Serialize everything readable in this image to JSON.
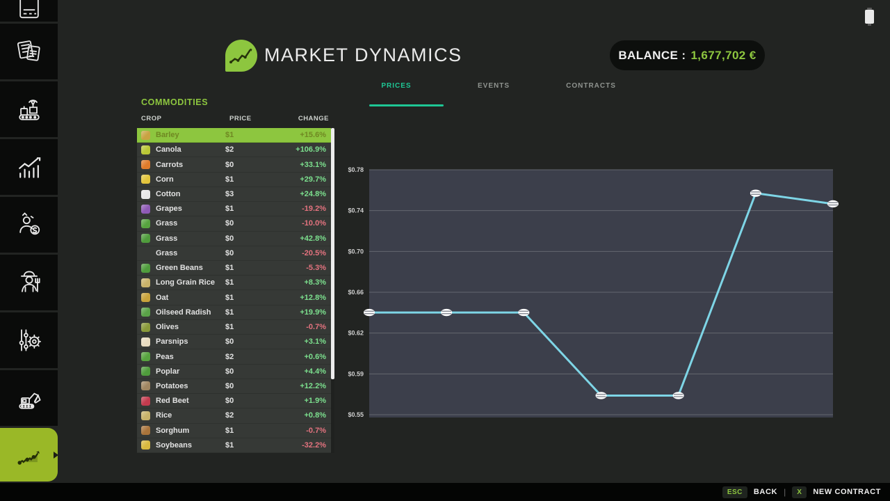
{
  "header": {
    "title": "MARKET DYNAMICS",
    "balance_label": "BALANCE :",
    "balance_value": "1,677,702 €"
  },
  "tabs": [
    {
      "label": "PRICES",
      "active": true
    },
    {
      "label": "EVENTS",
      "active": false
    },
    {
      "label": "CONTRACTS",
      "active": false
    }
  ],
  "commodities": {
    "section_title": "COMMODITIES",
    "columns": [
      "CROP",
      "PRICE",
      "CHANGE"
    ],
    "rows": [
      {
        "crop": "Barley",
        "price": "$1",
        "change": "+15.6%",
        "dir": "up",
        "selected": true,
        "icon": "barley-icon",
        "icon_color": "#c8a342"
      },
      {
        "crop": "Canola",
        "price": "$2",
        "change": "+106.9%",
        "dir": "up",
        "selected": false,
        "icon": "canola-icon",
        "icon_color": "#b9c736"
      },
      {
        "crop": "Carrots",
        "price": "$0",
        "change": "+33.1%",
        "dir": "up",
        "selected": false,
        "icon": "carrot-icon",
        "icon_color": "#e07b2a"
      },
      {
        "crop": "Corn",
        "price": "$1",
        "change": "+29.7%",
        "dir": "up",
        "selected": false,
        "icon": "corn-icon",
        "icon_color": "#e3c53c"
      },
      {
        "crop": "Cotton",
        "price": "$3",
        "change": "+24.8%",
        "dir": "up",
        "selected": false,
        "icon": "cotton-icon",
        "icon_color": "#e8e8e8"
      },
      {
        "crop": "Grapes",
        "price": "$1",
        "change": "-19.2%",
        "dir": "down",
        "selected": false,
        "icon": "grapes-icon",
        "icon_color": "#8e5ab5"
      },
      {
        "crop": "Grass",
        "price": "$0",
        "change": "-10.0%",
        "dir": "down",
        "selected": false,
        "icon": "grass-icon",
        "icon_color": "#57a33f"
      },
      {
        "crop": "Grass",
        "price": "$0",
        "change": "+42.8%",
        "dir": "up",
        "selected": false,
        "icon": "grass-icon",
        "icon_color": "#4f9c3c"
      },
      {
        "crop": "Grass",
        "price": "$0",
        "change": "-20.5%",
        "dir": "down",
        "selected": false,
        "icon": "none",
        "icon_color": "transparent"
      },
      {
        "crop": "Green Beans",
        "price": "$1",
        "change": "-5.3%",
        "dir": "down",
        "selected": false,
        "icon": "green-beans-icon",
        "icon_color": "#4f9c3c"
      },
      {
        "crop": "Long Grain Rice",
        "price": "$1",
        "change": "+8.3%",
        "dir": "up",
        "selected": false,
        "icon": "rice-icon",
        "icon_color": "#c9b36a"
      },
      {
        "crop": "Oat",
        "price": "$1",
        "change": "+12.8%",
        "dir": "up",
        "selected": false,
        "icon": "oat-icon",
        "icon_color": "#c9a33b"
      },
      {
        "crop": "Oilseed Radish",
        "price": "$1",
        "change": "+19.9%",
        "dir": "up",
        "selected": false,
        "icon": "oilseed-radish-icon",
        "icon_color": "#5aa348"
      },
      {
        "crop": "Olives",
        "price": "$1",
        "change": "-0.7%",
        "dir": "down",
        "selected": false,
        "icon": "olives-icon",
        "icon_color": "#8a9a3a"
      },
      {
        "crop": "Parsnips",
        "price": "$0",
        "change": "+3.1%",
        "dir": "up",
        "selected": false,
        "icon": "parsnip-icon",
        "icon_color": "#e8dcc0"
      },
      {
        "crop": "Peas",
        "price": "$2",
        "change": "+0.6%",
        "dir": "up",
        "selected": false,
        "icon": "peas-icon",
        "icon_color": "#57a33f"
      },
      {
        "crop": "Poplar",
        "price": "$0",
        "change": "+4.4%",
        "dir": "up",
        "selected": false,
        "icon": "poplar-icon",
        "icon_color": "#4f9c3c"
      },
      {
        "crop": "Potatoes",
        "price": "$0",
        "change": "+12.2%",
        "dir": "up",
        "selected": false,
        "icon": "potato-icon",
        "icon_color": "#a08662"
      },
      {
        "crop": "Red Beet",
        "price": "$0",
        "change": "+1.9%",
        "dir": "up",
        "selected": false,
        "icon": "red-beet-icon",
        "icon_color": "#c43b4e"
      },
      {
        "crop": "Rice",
        "price": "$2",
        "change": "+0.8%",
        "dir": "up",
        "selected": false,
        "icon": "rice-icon",
        "icon_color": "#c9b36a"
      },
      {
        "crop": "Sorghum",
        "price": "$1",
        "change": "-0.7%",
        "dir": "down",
        "selected": false,
        "icon": "sorghum-icon",
        "icon_color": "#a9743b"
      },
      {
        "crop": "Soybeans",
        "price": "$1",
        "change": "-32.2%",
        "dir": "down",
        "selected": false,
        "icon": "soybeans-icon",
        "icon_color": "#d9b93f"
      }
    ]
  },
  "chart_data": {
    "type": "line",
    "title": "Barley price history",
    "x": [
      0,
      1,
      2,
      3,
      4,
      5,
      6
    ],
    "values": [
      0.646,
      0.646,
      0.646,
      0.568,
      0.568,
      0.758,
      0.748
    ],
    "y_tick_labels": [
      "$0.78",
      "$0.74",
      "$0.70",
      "$0.66",
      "$0.62",
      "$0.59",
      "$0.55"
    ],
    "ylim": [
      0.55,
      0.78
    ],
    "xlabel": "",
    "ylabel": "",
    "grid": true,
    "legend": "none",
    "line_color": "#7ed5e6",
    "plot_bg": "#3c3f4b",
    "grid_color": "#64676f",
    "tick_color": "#cfcfcf"
  },
  "sidebar": {
    "items": [
      {
        "icon": "clipped-top-icon",
        "active": false
      },
      {
        "icon": "documents-icon",
        "active": false
      },
      {
        "icon": "production-icon",
        "active": false
      },
      {
        "icon": "statistics-icon",
        "active": false
      },
      {
        "icon": "sales-icon",
        "active": false
      },
      {
        "icon": "farmer-icon",
        "active": false
      },
      {
        "icon": "settings-icon",
        "active": false
      },
      {
        "icon": "construction-icon",
        "active": false
      },
      {
        "icon": "market-trend-icon",
        "active": true
      }
    ]
  },
  "footer": {
    "esc_key": "ESC",
    "back_label": "BACK",
    "separator": "|",
    "x_key": "X",
    "new_contract_label": "NEW CONTRACT"
  },
  "colors": {
    "accent_green": "#8dc63f",
    "active_tile_green": "#9ab827",
    "tab_teal": "#1ec795",
    "change_up": "#7ce08e",
    "change_down": "#e4737f",
    "chart_line": "#7ed5e6",
    "chart_bg": "#3c3f4b"
  }
}
